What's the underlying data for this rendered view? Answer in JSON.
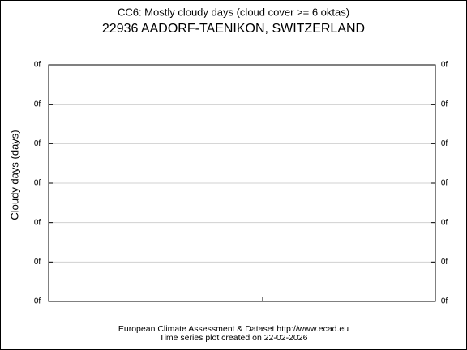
{
  "chart_data": {
    "type": "line",
    "title": "CC6: Mostly cloudy days (cloud cover >= 6 oktas)",
    "subtitle": "22936 AADORF-TAENIKON, SWITZERLAND",
    "y_label": "Cloudy days (days)",
    "footer": [
      "European Climate Assessment & Dataset  http://www.ecad.eu",
      "Time series plot created on 22-02-2026"
    ],
    "series": [],
    "ylim": [
      0,
      6
    ],
    "yticks": [
      {
        "value": 0,
        "label": "0f"
      },
      {
        "value": 1,
        "label": "0f"
      },
      {
        "value": 2,
        "label": "0f"
      },
      {
        "value": 3,
        "label": "0f"
      },
      {
        "value": 4,
        "label": "0f"
      },
      {
        "value": 5,
        "label": "0f"
      },
      {
        "value": 6,
        "label": "0f"
      }
    ],
    "y2lim": [
      0,
      6
    ],
    "y2ticks": [
      {
        "value": 0,
        "label": "0f"
      },
      {
        "value": 1,
        "label": "0f"
      },
      {
        "value": 2,
        "label": "0f"
      },
      {
        "value": 3,
        "label": "0f"
      },
      {
        "value": 4,
        "label": "0f"
      },
      {
        "value": 5,
        "label": "0f"
      },
      {
        "value": 6,
        "label": "0f"
      }
    ],
    "grid": true
  }
}
